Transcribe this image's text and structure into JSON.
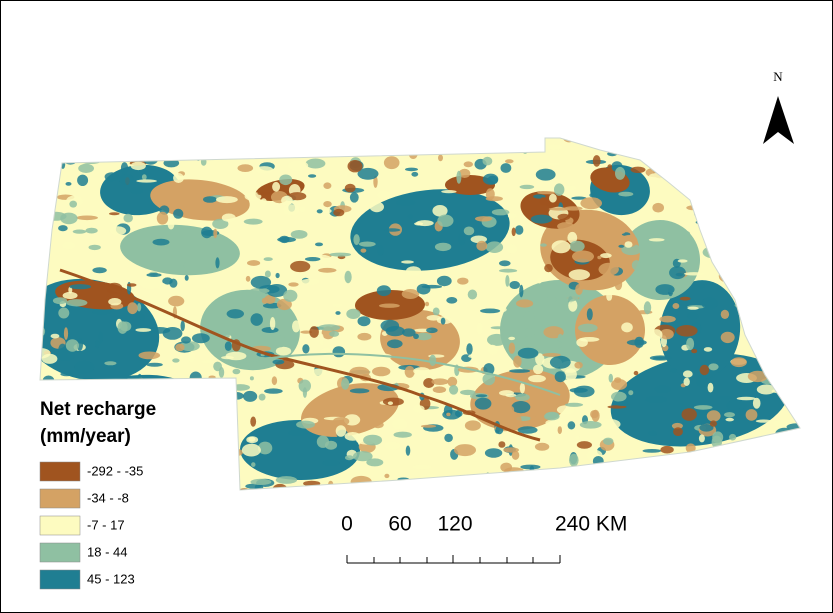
{
  "north_label": "N",
  "legend": {
    "title": "Net recharge",
    "subtitle": "(mm/year)",
    "classes": [
      {
        "label": "-292 - -35",
        "color": "#a0541f"
      },
      {
        "label": "-34 - -8",
        "color": "#d4a264"
      },
      {
        "label": "-7 - 17",
        "color": "#fdfbc0"
      },
      {
        "label": "18 - 44",
        "color": "#8fc0a2"
      },
      {
        "label": "45 - 123",
        "color": "#1f7e92"
      }
    ]
  },
  "scale_bar": {
    "labels": [
      "0",
      "60",
      "120",
      "240 KM"
    ]
  }
}
